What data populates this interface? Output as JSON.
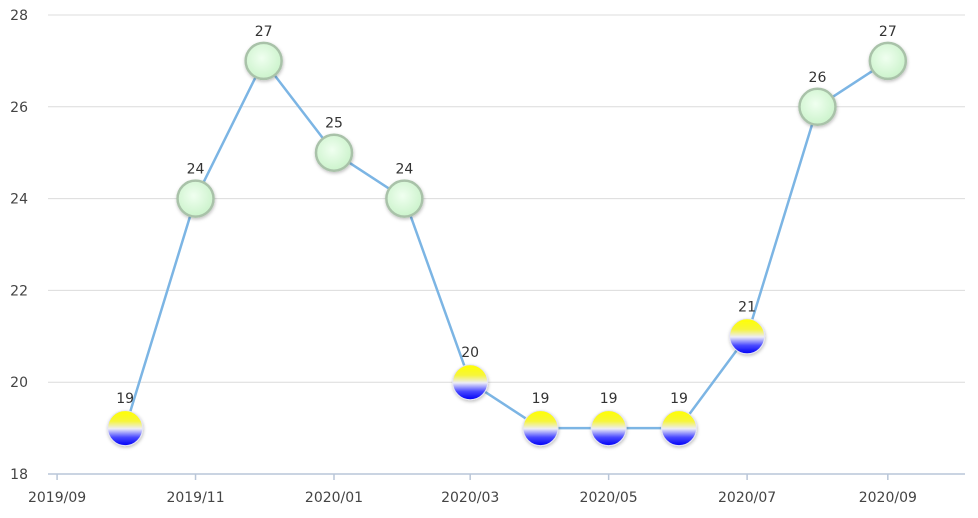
{
  "chart_data": {
    "type": "line",
    "x": [
      "2019/10",
      "2019/11",
      "2019/12",
      "2020/01",
      "2020/02",
      "2020/03",
      "2020/04",
      "2020/05",
      "2020/06",
      "2020/07",
      "2020/08",
      "2020/09"
    ],
    "values": [
      19,
      24,
      27,
      25,
      24,
      20,
      19,
      19,
      19,
      21,
      26,
      27
    ],
    "x_tick_labels": [
      "2019/09",
      "2019/11",
      "2020/01",
      "2020/03",
      "2020/05",
      "2020/07",
      "2020/09"
    ],
    "y_tick_labels": [
      "18",
      "20",
      "22",
      "24",
      "26",
      "28"
    ],
    "ylim": [
      18,
      28
    ],
    "xlim": [
      "2019/08/28",
      "2020/10/05"
    ],
    "data_labels": true,
    "grid": true
  },
  "colors": {
    "line": "#7cb5e4",
    "grid": "#dcdcdc",
    "axis": "#b9c6d8",
    "high_marker_fill": "#c9f2c9",
    "high_marker_stroke": "#a9c2a9",
    "low_marker_top": "#ffff00",
    "low_marker_bottom": "#0000f5"
  }
}
